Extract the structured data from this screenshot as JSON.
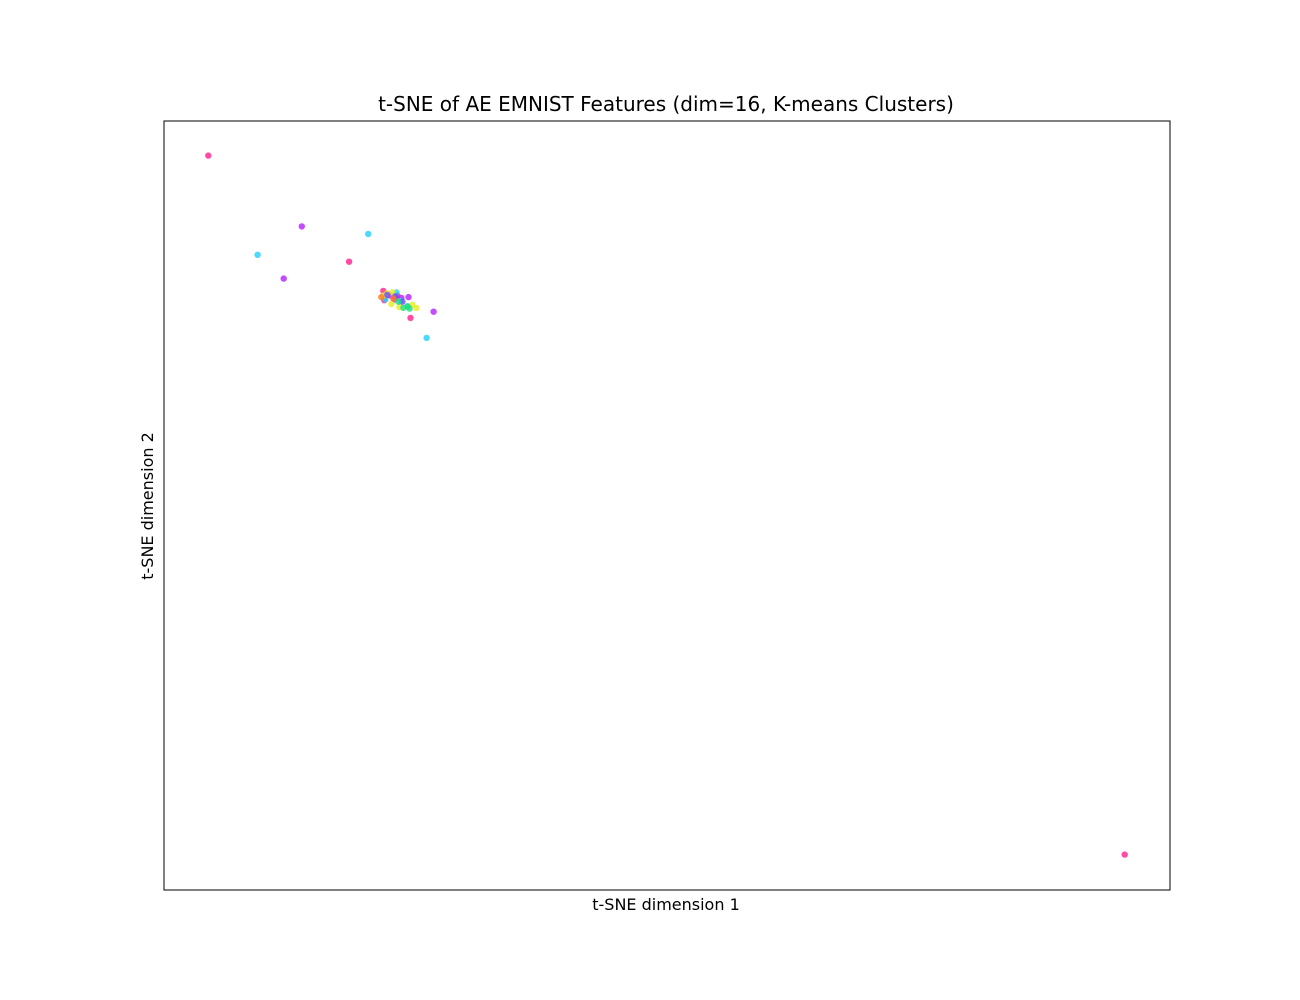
{
  "chart_data": {
    "type": "scatter",
    "title": "t-SNE of AE EMNIST Features (dim=16, K-means Clusters)",
    "xlabel": "t-SNE dimension 1",
    "ylabel": "t-SNE dimension 2",
    "xlim": [
      0,
      100
    ],
    "ylim": [
      0,
      100
    ],
    "ticks_visible": false,
    "grid": false,
    "legend": "none",
    "series": [
      {
        "color": "#ff1f8e",
        "points": [
          [
            4.4,
            95.5
          ],
          [
            18.4,
            81.7
          ],
          [
            21.8,
            77.9
          ],
          [
            21.9,
            76.7
          ],
          [
            23.2,
            77.3
          ],
          [
            24.5,
            74.4
          ],
          [
            95.5,
            4.6
          ]
        ]
      },
      {
        "color": "#b51fff",
        "points": [
          [
            13.7,
            86.3
          ],
          [
            11.9,
            79.5
          ],
          [
            22.5,
            77.3
          ],
          [
            23.6,
            77.0
          ],
          [
            24.3,
            77.1
          ],
          [
            26.8,
            75.2
          ],
          [
            22.9,
            76.8
          ]
        ]
      },
      {
        "color": "#1fd0ff",
        "points": [
          [
            9.3,
            82.6
          ],
          [
            20.3,
            85.3
          ],
          [
            23.5,
            76.6
          ],
          [
            26.1,
            71.8
          ],
          [
            23.1,
            77.7
          ],
          [
            22.0,
            76.8
          ],
          [
            24.2,
            75.9
          ]
        ]
      },
      {
        "color": "#e6ee1f",
        "points": [
          [
            21.8,
            77.3
          ],
          [
            22.6,
            76.2
          ],
          [
            22.2,
            77.6
          ],
          [
            25.1,
            75.7
          ],
          [
            23.4,
            75.8
          ],
          [
            22.7,
            77.7
          ],
          [
            24.7,
            76.1
          ]
        ]
      },
      {
        "color": "#6e4cff",
        "points": [
          [
            22.2,
            77.4
          ],
          [
            23.0,
            77.2
          ],
          [
            23.7,
            76.5
          ]
        ]
      },
      {
        "color": "#1fe07a",
        "points": [
          [
            23.8,
            75.7
          ],
          [
            24.4,
            75.6
          ],
          [
            23.3,
            76.5
          ],
          [
            24.2,
            75.9
          ]
        ]
      },
      {
        "color": "#ff7a1f",
        "points": [
          [
            21.6,
            77.1
          ],
          [
            22.8,
            76.9
          ]
        ]
      }
    ]
  }
}
